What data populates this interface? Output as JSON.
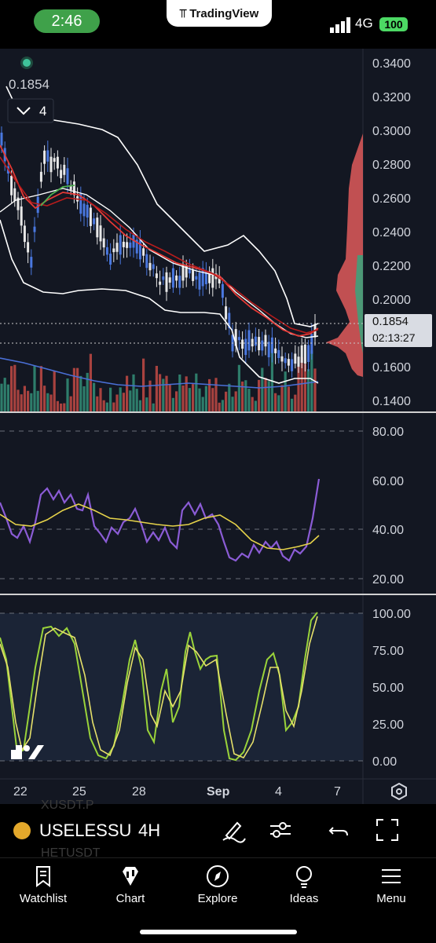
{
  "status_bar": {
    "time": "2:46",
    "network": "4G",
    "battery": "100"
  },
  "banner": {
    "brand": "TradingView"
  },
  "chart": {
    "legend_value": "0.1854",
    "collapse_count": "4",
    "price_axis": [
      "0.3400",
      "0.3200",
      "0.3000",
      "0.2800",
      "0.2600",
      "0.2400",
      "0.2200",
      "0.2000",
      "0.1600",
      "0.1400"
    ],
    "current_price": "0.1854",
    "countdown": "02:13:27",
    "rsi_axis": [
      "80.00",
      "60.00",
      "40.00",
      "20.00"
    ],
    "stoch_axis": [
      "100.00",
      "75.00",
      "50.00",
      "25.00",
      "0.00"
    ],
    "date_axis": [
      "22",
      "25",
      "28",
      "Sep",
      "4",
      "7"
    ],
    "colors": {
      "background": "#131722",
      "up": "#4a78e0",
      "ema_red": "#e53935",
      "bb": "#ffffff",
      "rsi": "#8b5cd6",
      "rsi_ma": "#e6d34a",
      "stoch_k": "#9ad33a",
      "stoch_d": "#e6e06a"
    }
  },
  "chart_data": {
    "type": "candlestick",
    "panes": [
      "price",
      "rsi",
      "stochastic"
    ],
    "price_ylim": [
      0.14,
      0.34
    ],
    "rsi_ylim": [
      20,
      80
    ],
    "stoch_ylim": [
      0,
      100
    ],
    "last_price": 0.1854
  },
  "toolbar": {
    "symbol": "USELESSU",
    "timeframe": "4H",
    "ghost_above": "XUSDT.P",
    "ghost_below": "HETUSDT"
  },
  "tabs": [
    {
      "label": "Watchlist",
      "icon": "bookmark-icon"
    },
    {
      "label": "Chart",
      "icon": "candles-icon"
    },
    {
      "label": "Explore",
      "icon": "compass-icon"
    },
    {
      "label": "Ideas",
      "icon": "lightbulb-icon"
    },
    {
      "label": "Menu",
      "icon": "hamburger-icon"
    }
  ]
}
